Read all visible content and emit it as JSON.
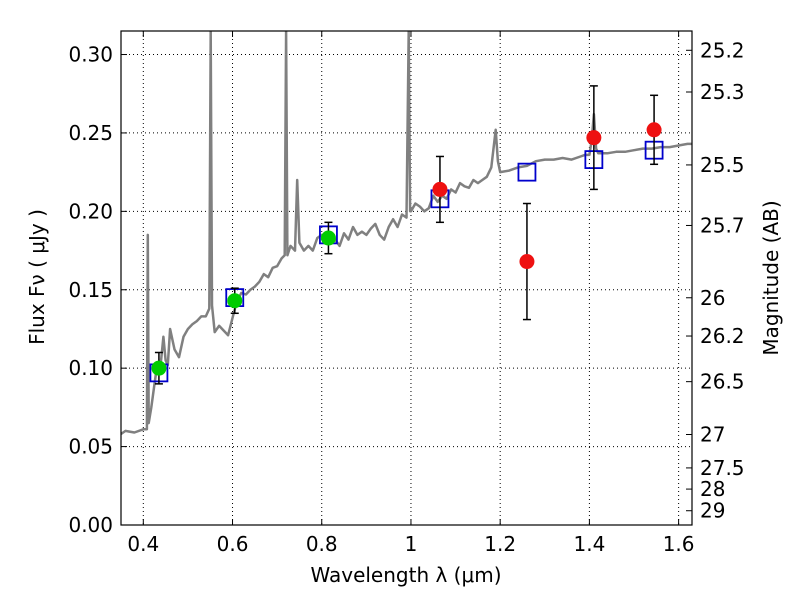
{
  "chart_data": {
    "type": "scatter",
    "xlabel": "Wavelength  λ (μm)",
    "ylabel": "Flux  Fν  ( μJy )",
    "ylabel2": "Magnitude (AB)",
    "xlim": [
      0.35,
      1.63
    ],
    "ylim": [
      0.0,
      0.315
    ],
    "grid": true,
    "x_ticks": [
      0.4,
      0.6,
      0.8,
      1.0,
      1.2,
      1.4,
      1.6
    ],
    "x_tick_labels": [
      "0.4",
      "0.6",
      "0.8",
      "1",
      "1.2",
      "1.4",
      "1.6"
    ],
    "y_ticks": [
      0.0,
      0.05,
      0.1,
      0.15,
      0.2,
      0.25,
      0.3
    ],
    "y_tick_labels": [
      "0.00",
      "0.05",
      "0.10",
      "0.15",
      "0.20",
      "0.25",
      "0.30"
    ],
    "right_axis_ticks": [
      {
        "label": "25.2",
        "flux": 0.3027
      },
      {
        "label": "25.3",
        "flux": 0.2761
      },
      {
        "label": "25.5",
        "flux": 0.2296
      },
      {
        "label": "25.7",
        "flux": 0.191
      },
      {
        "label": "26",
        "flux": 0.1449
      },
      {
        "label": "26.2",
        "flux": 0.1205
      },
      {
        "label": "26.5",
        "flux": 0.0914
      },
      {
        "label": "27",
        "flux": 0.0577
      },
      {
        "label": "27.5",
        "flux": 0.0364
      },
      {
        "label": "28",
        "flux": 0.0229
      },
      {
        "label": "29",
        "flux": 0.0091
      }
    ],
    "series": [
      {
        "kind": "line",
        "color": "#808080",
        "points": [
          [
            0.35,
            0.058
          ],
          [
            0.36,
            0.06
          ],
          [
            0.38,
            0.059
          ],
          [
            0.4,
            0.061
          ],
          [
            0.408,
            0.061
          ],
          [
            0.41,
            0.185
          ],
          [
            0.412,
            0.065
          ],
          [
            0.418,
            0.075
          ],
          [
            0.425,
            0.09
          ],
          [
            0.43,
            0.1
          ],
          [
            0.44,
            0.105
          ],
          [
            0.445,
            0.12
          ],
          [
            0.45,
            0.105
          ],
          [
            0.455,
            0.102
          ],
          [
            0.46,
            0.125
          ],
          [
            0.47,
            0.112
          ],
          [
            0.48,
            0.107
          ],
          [
            0.49,
            0.12
          ],
          [
            0.5,
            0.125
          ],
          [
            0.51,
            0.128
          ],
          [
            0.52,
            0.13
          ],
          [
            0.53,
            0.133
          ],
          [
            0.54,
            0.133
          ],
          [
            0.548,
            0.138
          ],
          [
            0.551,
            0.315
          ],
          [
            0.554,
            0.14
          ],
          [
            0.56,
            0.123
          ],
          [
            0.57,
            0.127
          ],
          [
            0.58,
            0.124
          ],
          [
            0.59,
            0.121
          ],
          [
            0.6,
            0.132
          ],
          [
            0.61,
            0.143
          ],
          [
            0.62,
            0.148
          ],
          [
            0.63,
            0.147
          ],
          [
            0.64,
            0.15
          ],
          [
            0.65,
            0.152
          ],
          [
            0.66,
            0.155
          ],
          [
            0.67,
            0.16
          ],
          [
            0.68,
            0.158
          ],
          [
            0.69,
            0.164
          ],
          [
            0.7,
            0.165
          ],
          [
            0.71,
            0.17
          ],
          [
            0.717,
            0.172
          ],
          [
            0.72,
            0.315
          ],
          [
            0.723,
            0.172
          ],
          [
            0.73,
            0.178
          ],
          [
            0.74,
            0.175
          ],
          [
            0.745,
            0.22
          ],
          [
            0.75,
            0.18
          ],
          [
            0.76,
            0.175
          ],
          [
            0.77,
            0.178
          ],
          [
            0.78,
            0.175
          ],
          [
            0.79,
            0.183
          ],
          [
            0.8,
            0.185
          ],
          [
            0.81,
            0.183
          ],
          [
            0.82,
            0.18
          ],
          [
            0.83,
            0.182
          ],
          [
            0.84,
            0.178
          ],
          [
            0.85,
            0.186
          ],
          [
            0.86,
            0.182
          ],
          [
            0.87,
            0.19
          ],
          [
            0.88,
            0.185
          ],
          [
            0.89,
            0.187
          ],
          [
            0.9,
            0.185
          ],
          [
            0.91,
            0.189
          ],
          [
            0.92,
            0.192
          ],
          [
            0.93,
            0.185
          ],
          [
            0.94,
            0.182
          ],
          [
            0.95,
            0.19
          ],
          [
            0.96,
            0.195
          ],
          [
            0.97,
            0.19
          ],
          [
            0.98,
            0.198
          ],
          [
            0.99,
            0.196
          ],
          [
            0.995,
            0.315
          ],
          [
            0.998,
            0.2
          ],
          [
            1.0,
            0.2
          ],
          [
            1.01,
            0.205
          ],
          [
            1.02,
            0.203
          ],
          [
            1.03,
            0.2
          ],
          [
            1.04,
            0.202
          ],
          [
            1.05,
            0.21
          ],
          [
            1.06,
            0.206
          ],
          [
            1.07,
            0.21
          ],
          [
            1.08,
            0.208
          ],
          [
            1.09,
            0.214
          ],
          [
            1.1,
            0.212
          ],
          [
            1.11,
            0.218
          ],
          [
            1.12,
            0.216
          ],
          [
            1.13,
            0.215
          ],
          [
            1.14,
            0.22
          ],
          [
            1.15,
            0.218
          ],
          [
            1.16,
            0.22
          ],
          [
            1.17,
            0.222
          ],
          [
            1.18,
            0.228
          ],
          [
            1.19,
            0.252
          ],
          [
            1.195,
            0.232
          ],
          [
            1.2,
            0.225
          ],
          [
            1.22,
            0.226
          ],
          [
            1.24,
            0.228
          ],
          [
            1.26,
            0.229
          ],
          [
            1.28,
            0.232
          ],
          [
            1.3,
            0.233
          ],
          [
            1.32,
            0.233
          ],
          [
            1.34,
            0.234
          ],
          [
            1.36,
            0.233
          ],
          [
            1.38,
            0.235
          ],
          [
            1.39,
            0.236
          ],
          [
            1.4,
            0.236
          ],
          [
            1.405,
            0.245
          ],
          [
            1.41,
            0.262
          ],
          [
            1.415,
            0.24
          ],
          [
            1.42,
            0.237
          ],
          [
            1.44,
            0.237
          ],
          [
            1.46,
            0.238
          ],
          [
            1.48,
            0.238
          ],
          [
            1.5,
            0.239
          ],
          [
            1.52,
            0.24
          ],
          [
            1.54,
            0.24
          ],
          [
            1.56,
            0.241
          ],
          [
            1.58,
            0.241
          ],
          [
            1.6,
            0.242
          ],
          [
            1.62,
            0.243
          ],
          [
            1.63,
            0.243
          ]
        ]
      },
      {
        "kind": "open-square",
        "color": "#0000cc",
        "x": [
          0.435,
          0.605,
          0.815,
          1.065,
          1.26,
          1.41,
          1.545
        ],
        "y": [
          0.097,
          0.145,
          0.185,
          0.208,
          0.225,
          0.233,
          0.239
        ]
      },
      {
        "kind": "filled-circle",
        "color": "#00cc00",
        "x": [
          0.435,
          0.605,
          0.815
        ],
        "y": [
          0.1,
          0.143,
          0.183
        ],
        "yerr": [
          0.01,
          0.008,
          0.01
        ]
      },
      {
        "kind": "filled-circle",
        "color": "#ee1111",
        "x": [
          1.065,
          1.26,
          1.41,
          1.545
        ],
        "y": [
          0.214,
          0.168,
          0.247,
          0.252
        ],
        "yerr": [
          0.021,
          0.037,
          0.033,
          0.022
        ]
      }
    ]
  }
}
